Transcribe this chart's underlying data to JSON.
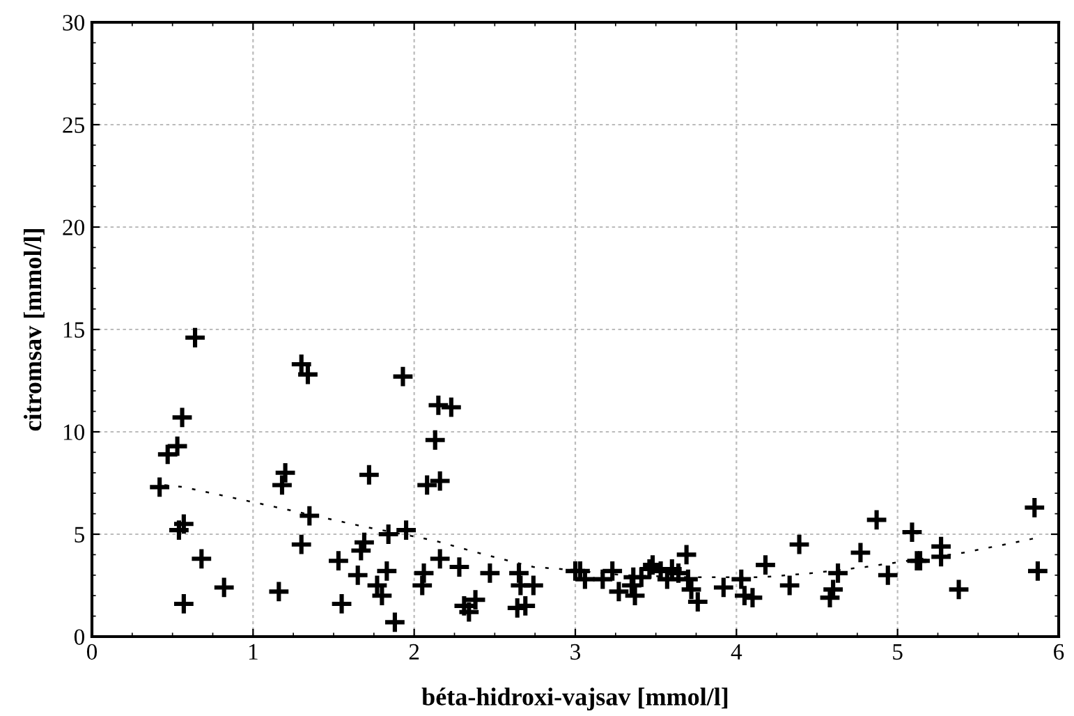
{
  "chart_data": {
    "type": "scatter",
    "xlabel": "béta-hidroxi-vajsav [mmol/l]",
    "ylabel": "citromsav [mmol/l]",
    "xlim": [
      0,
      6
    ],
    "ylim": [
      0,
      30
    ],
    "xticks": [
      0,
      1,
      2,
      3,
      4,
      5,
      6
    ],
    "yticks": [
      0,
      5,
      10,
      15,
      20,
      25,
      30
    ],
    "grid": true,
    "marker": "cross",
    "series": [
      {
        "color": "#000000",
        "x": [
          0.42,
          0.47,
          0.53,
          0.56,
          0.64,
          0.54,
          0.57,
          0.57,
          0.68,
          0.82,
          1.16,
          1.18,
          1.2,
          1.3,
          1.34,
          1.3,
          1.35,
          1.53,
          1.55,
          1.65,
          1.67,
          1.69,
          1.72,
          1.77,
          1.8,
          1.83,
          1.84,
          1.88,
          1.93,
          1.95,
          2.05,
          2.06,
          2.08,
          2.13,
          2.15,
          2.16,
          2.16,
          2.23,
          2.28,
          2.31,
          2.34,
          2.38,
          2.47,
          2.64,
          2.65,
          2.66,
          2.69,
          2.74,
          3.0,
          3.03,
          3.06,
          3.17,
          3.23,
          3.27,
          3.35,
          3.36,
          3.37,
          3.41,
          3.46,
          3.48,
          3.53,
          3.57,
          3.6,
          3.64,
          3.69,
          3.7,
          3.72,
          3.76,
          3.92,
          4.03,
          4.05,
          4.1,
          4.18,
          4.33,
          4.39,
          4.58,
          4.6,
          4.63,
          4.77,
          4.87,
          4.94,
          5.09,
          5.12,
          5.14,
          5.27,
          5.27,
          5.38,
          5.85,
          5.87
        ],
        "values": [
          7.3,
          8.9,
          9.3,
          10.7,
          14.6,
          5.2,
          5.5,
          1.6,
          3.8,
          2.4,
          2.2,
          7.4,
          8.0,
          13.3,
          12.8,
          4.5,
          5.9,
          3.7,
          1.6,
          3.0,
          4.2,
          4.6,
          7.9,
          2.5,
          2.0,
          3.2,
          5.0,
          0.7,
          12.7,
          5.2,
          2.5,
          3.1,
          7.4,
          9.6,
          11.3,
          7.6,
          3.8,
          11.2,
          3.4,
          1.5,
          1.2,
          1.8,
          3.1,
          1.4,
          3.1,
          2.5,
          1.5,
          2.5,
          3.2,
          3.2,
          2.8,
          2.8,
          3.2,
          2.2,
          2.5,
          2.9,
          2.0,
          2.9,
          3.3,
          3.5,
          3.2,
          2.8,
          3.3,
          3.1,
          4.0,
          2.8,
          2.3,
          1.7,
          2.4,
          2.8,
          2.0,
          1.9,
          3.5,
          2.5,
          4.5,
          1.9,
          2.3,
          3.1,
          4.1,
          5.7,
          3.0,
          5.1,
          3.7,
          3.7,
          4.4,
          3.9,
          2.3,
          6.3,
          3.2
        ]
      },
      {
        "type": "line",
        "line_style": "dotted",
        "marker": "none",
        "color": "#000000",
        "x": [
          0.45,
          0.57,
          1.04,
          1.5,
          1.67,
          2.12,
          2.44,
          2.74,
          2.91,
          3.3,
          3.7,
          4.16,
          4.47,
          4.8,
          5.41,
          5.73,
          5.85
        ],
        "values": [
          7.4,
          7.3,
          6.5,
          5.7,
          5.4,
          4.7,
          4.0,
          3.4,
          3.3,
          3.0,
          2.9,
          2.9,
          3.1,
          3.4,
          4.1,
          4.6,
          4.8
        ]
      }
    ]
  }
}
